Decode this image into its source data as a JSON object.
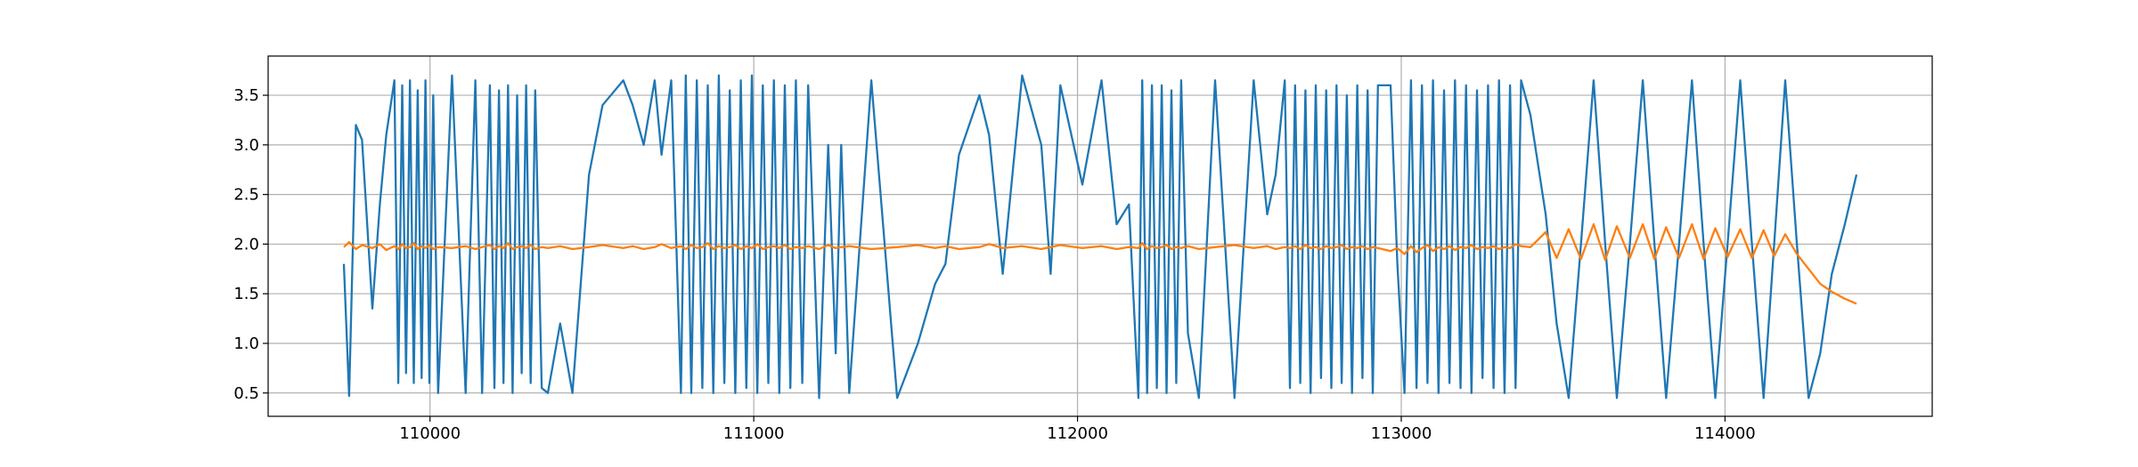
{
  "chart_data": {
    "type": "line",
    "x": [
      109734,
      109750,
      109771,
      109790,
      109822,
      109845,
      109865,
      109890,
      109902,
      109914,
      109926,
      109938,
      109950,
      109962,
      109974,
      109986,
      109998,
      110010,
      110025,
      110068,
      110110,
      110140,
      110161,
      110185,
      110199,
      110213,
      110227,
      110241,
      110255,
      110269,
      110283,
      110297,
      110311,
      110325,
      110345,
      110364,
      110402,
      110440,
      110491,
      110533,
      110597,
      110626,
      110660,
      110694,
      110715,
      110745,
      110775,
      110790,
      110807,
      110824,
      110841,
      110858,
      110875,
      110892,
      110909,
      110926,
      110943,
      110960,
      110977,
      110994,
      111011,
      111028,
      111045,
      111062,
      111079,
      111096,
      111113,
      111130,
      111150,
      111168,
      111202,
      111230,
      111253,
      111270,
      111295,
      111363,
      111443,
      111507,
      111560,
      111592,
      111634,
      111697,
      111727,
      111769,
      111829,
      111888,
      111917,
      111947,
      112015,
      112074,
      112121,
      112159,
      112188,
      112200,
      112215,
      112230,
      112245,
      112260,
      112275,
      112290,
      112305,
      112320,
      112341,
      112375,
      112425,
      112485,
      112544,
      112586,
      112612,
      112640,
      112656,
      112672,
      112688,
      112704,
      112720,
      112736,
      112752,
      112768,
      112784,
      112800,
      112816,
      112832,
      112848,
      112864,
      112880,
      112896,
      112912,
      112928,
      112967,
      112988,
      113010,
      113030,
      113047,
      113064,
      113081,
      113098,
      113115,
      113132,
      113149,
      113166,
      113183,
      113200,
      113217,
      113234,
      113251,
      113268,
      113285,
      113302,
      113319,
      113336,
      113353,
      113370,
      113399,
      113446,
      113480,
      113517,
      113555,
      113594,
      113630,
      113666,
      113706,
      113746,
      113782,
      113818,
      113858,
      113898,
      113934,
      113970,
      114008,
      114047,
      114083,
      114119,
      114152,
      114186,
      114222,
      114258,
      114294,
      114330,
      114370,
      114406
    ],
    "series": [
      {
        "name": "blue",
        "color": "#1f77b4",
        "values": [
          1.8,
          0.47,
          3.2,
          3.05,
          1.35,
          2.4,
          3.1,
          3.65,
          0.6,
          3.6,
          0.7,
          3.65,
          0.6,
          3.55,
          0.65,
          3.65,
          0.6,
          3.5,
          0.5,
          3.7,
          0.5,
          3.65,
          0.5,
          3.6,
          0.55,
          3.55,
          0.6,
          3.6,
          0.5,
          3.5,
          0.7,
          3.6,
          0.6,
          3.55,
          0.55,
          0.5,
          1.2,
          0.5,
          2.7,
          3.4,
          3.65,
          3.4,
          3.0,
          3.65,
          2.9,
          3.65,
          0.5,
          3.7,
          0.5,
          3.65,
          0.55,
          3.6,
          0.5,
          3.7,
          0.6,
          3.55,
          0.5,
          3.65,
          0.55,
          3.7,
          0.5,
          3.6,
          0.6,
          3.65,
          0.5,
          3.6,
          0.55,
          3.65,
          0.6,
          3.6,
          0.45,
          3.0,
          0.9,
          3.0,
          0.5,
          3.65,
          0.45,
          1.0,
          1.6,
          1.8,
          2.9,
          3.5,
          3.1,
          1.7,
          3.7,
          3.0,
          1.7,
          3.6,
          2.6,
          3.65,
          2.2,
          2.4,
          0.45,
          3.65,
          0.5,
          3.6,
          0.55,
          3.6,
          0.5,
          3.55,
          0.6,
          3.65,
          1.1,
          0.45,
          3.65,
          0.45,
          3.65,
          2.3,
          2.7,
          3.65,
          0.55,
          3.6,
          0.6,
          3.55,
          0.5,
          3.6,
          0.65,
          3.55,
          0.55,
          3.6,
          0.6,
          3.5,
          0.5,
          3.6,
          0.65,
          3.55,
          0.5,
          3.6,
          3.6,
          1.8,
          0.5,
          3.65,
          0.55,
          3.6,
          0.6,
          3.65,
          0.5,
          3.55,
          0.6,
          3.65,
          0.55,
          3.6,
          0.5,
          3.55,
          0.65,
          3.6,
          0.55,
          3.65,
          0.5,
          3.6,
          0.55,
          3.65,
          3.3,
          2.3,
          1.2,
          0.45,
          2.0,
          3.65,
          2.0,
          0.45,
          2.0,
          3.65,
          2.0,
          0.45,
          2.0,
          3.65,
          2.0,
          0.45,
          2.0,
          3.65,
          2.0,
          0.45,
          2.0,
          3.65,
          2.0,
          0.45,
          0.9,
          1.7,
          2.2,
          2.7
        ]
      },
      {
        "name": "orange",
        "color": "#ff7f0e",
        "values": [
          1.97,
          2.02,
          1.95,
          1.99,
          1.96,
          2.0,
          1.94,
          1.98,
          1.95,
          2.0,
          1.96,
          1.97,
          2.01,
          1.95,
          1.98,
          1.96,
          1.99,
          1.95,
          1.97,
          1.96,
          1.98,
          1.95,
          1.97,
          1.99,
          1.95,
          1.98,
          1.96,
          2.01,
          1.95,
          1.97,
          1.98,
          1.96,
          1.99,
          1.95,
          1.97,
          1.96,
          1.98,
          1.95,
          1.97,
          1.99,
          1.96,
          1.98,
          1.95,
          1.97,
          2.0,
          1.96,
          1.98,
          1.95,
          1.99,
          1.96,
          1.97,
          2.01,
          1.95,
          1.98,
          1.96,
          1.97,
          1.99,
          1.95,
          1.98,
          1.96,
          2.0,
          1.95,
          1.97,
          1.98,
          1.96,
          1.99,
          1.95,
          1.97,
          1.96,
          1.98,
          1.95,
          1.99,
          1.96,
          1.97,
          1.98,
          1.95,
          1.97,
          1.99,
          1.96,
          1.98,
          1.95,
          1.97,
          2.0,
          1.96,
          1.98,
          1.95,
          1.97,
          1.99,
          1.96,
          1.98,
          1.95,
          1.97,
          1.96,
          2.01,
          1.95,
          1.98,
          1.96,
          1.97,
          1.99,
          1.95,
          1.97,
          1.96,
          1.98,
          1.95,
          1.97,
          1.99,
          1.96,
          1.98,
          1.95,
          1.97,
          1.96,
          1.98,
          1.95,
          1.99,
          1.96,
          1.97,
          1.95,
          1.98,
          1.96,
          1.97,
          1.99,
          1.95,
          1.97,
          1.96,
          1.98,
          1.95,
          1.97,
          1.96,
          1.93,
          1.96,
          1.9,
          1.98,
          1.92,
          1.96,
          1.99,
          1.93,
          1.97,
          1.95,
          1.98,
          1.94,
          1.97,
          1.96,
          1.99,
          1.95,
          1.97,
          1.96,
          1.98,
          1.95,
          1.97,
          1.96,
          2.0,
          1.98,
          1.97,
          2.12,
          1.86,
          2.15,
          1.85,
          2.2,
          1.84,
          2.18,
          1.86,
          2.2,
          1.85,
          2.17,
          1.86,
          2.2,
          1.85,
          2.16,
          1.87,
          2.15,
          1.86,
          2.14,
          1.88,
          2.1,
          1.9,
          1.75,
          1.6,
          1.52,
          1.45,
          1.4
        ]
      }
    ],
    "xlim": [
      109500,
      114640
    ],
    "ylim": [
      0.265,
      3.895
    ],
    "xticks": [
      110000,
      111000,
      112000,
      113000,
      114000
    ],
    "yticks": [
      0.5,
      {
        "value": 1,
        "label": "1.0"
      },
      1.5,
      {
        "value": 2,
        "label": "2.0"
      },
      2.5,
      {
        "value": 3,
        "label": "3.0"
      },
      3.5
    ],
    "grid": true
  }
}
